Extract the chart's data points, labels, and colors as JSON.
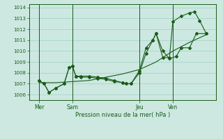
{
  "xlabel": "Pression niveau de la mer( hPa )",
  "ylim": [
    1005.5,
    1014.3
  ],
  "yticks": [
    1006,
    1007,
    1008,
    1009,
    1010,
    1011,
    1012,
    1013,
    1014
  ],
  "background_color": "#cce8e0",
  "grid_color": "#a8d4cc",
  "line_color": "#1a5c1a",
  "tick_label_color": "#1a5c1a",
  "axis_label_color": "#1a5c1a",
  "xtick_positions": [
    0,
    1,
    3,
    4
  ],
  "xtick_labels": [
    "Mer",
    "Sam",
    "Jeu",
    "Ven"
  ],
  "vline_positions": [
    0,
    1,
    3,
    4
  ],
  "series1_x": [
    0.0,
    0.15,
    0.3,
    0.5,
    0.75,
    0.9,
    1.0,
    1.1,
    1.25,
    1.5,
    1.75,
    2.0,
    2.25,
    2.5,
    2.6,
    2.75,
    3.0,
    3.2,
    3.4,
    3.5,
    3.7,
    3.9,
    4.1,
    4.25,
    4.5,
    4.7,
    5.0
  ],
  "series1_y": [
    1007.3,
    1007.0,
    1006.2,
    1006.6,
    1007.0,
    1008.5,
    1008.6,
    1007.7,
    1007.6,
    1007.6,
    1007.5,
    1007.4,
    1007.2,
    1007.1,
    1007.0,
    1007.0,
    1008.0,
    1009.8,
    1011.0,
    1011.6,
    1010.0,
    1009.3,
    1009.5,
    1010.3,
    1010.3,
    1011.6,
    1011.6
  ],
  "series2_x": [
    0.0,
    0.15,
    0.3,
    0.5,
    0.75,
    0.9,
    1.0,
    1.1,
    1.25,
    1.5,
    1.75,
    2.0,
    2.25,
    2.5,
    2.6,
    2.75,
    3.0,
    3.2,
    3.4,
    3.5,
    3.7,
    3.9,
    4.0,
    4.25,
    4.5,
    4.65,
    4.8,
    5.0
  ],
  "series2_y": [
    1007.3,
    1007.0,
    1006.2,
    1006.6,
    1007.0,
    1008.5,
    1008.6,
    1007.7,
    1007.7,
    1007.7,
    1007.6,
    1007.5,
    1007.3,
    1007.1,
    1007.0,
    1007.0,
    1008.2,
    1010.3,
    1011.0,
    1011.6,
    1009.4,
    1009.4,
    1012.7,
    1013.2,
    1013.5,
    1013.6,
    1012.8,
    1011.6
  ],
  "series3_x": [
    0.0,
    0.5,
    1.0,
    1.5,
    2.0,
    2.5,
    3.0,
    3.5,
    4.0,
    4.5,
    5.0
  ],
  "series3_y": [
    1007.1,
    1007.1,
    1007.2,
    1007.3,
    1007.6,
    1007.9,
    1008.3,
    1009.0,
    1010.0,
    1010.8,
    1011.5
  ],
  "xlim": [
    -0.3,
    5.3
  ],
  "figsize": [
    3.2,
    2.0
  ],
  "dpi": 100
}
